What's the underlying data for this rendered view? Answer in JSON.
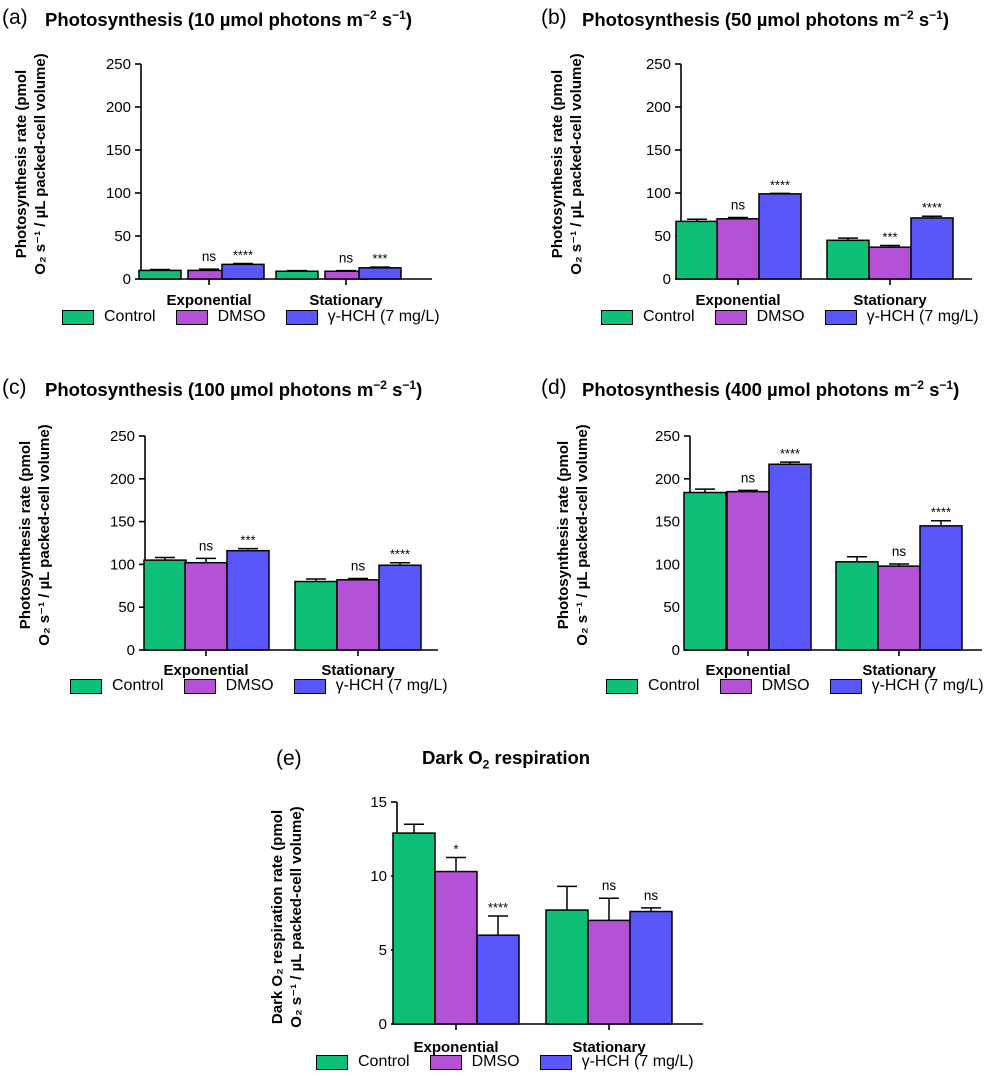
{
  "colors": {
    "control": "#0dbf77",
    "dmso": "#b551d6",
    "hch": "#5a57fa"
  },
  "legend": [
    "Control",
    "DMSO",
    "γ-HCH (7 mg/L)"
  ],
  "chart_data": [
    {
      "id": "a",
      "type": "bar",
      "panel_label": "(a)",
      "title_pre": "Photosynthesis (10 µmol photons m",
      "title_sup1": "−2",
      "title_mid": " s",
      "title_sup2": "−1",
      "title_post": ")",
      "ylabel_line1": "Photosynthesis rate (pmol",
      "ylabel_line2": "O₂ s⁻¹ / µL packed-cell volume)",
      "categories": [
        "Exponential",
        "Stationary"
      ],
      "ylim": [
        0,
        250
      ],
      "yticks": [
        "0",
        "50",
        "100",
        "150",
        "200",
        "250"
      ],
      "series": [
        {
          "name": "Control",
          "values": [
            10,
            9
          ],
          "errors": [
            1,
            0.7
          ],
          "sig": [
            "",
            ""
          ]
        },
        {
          "name": "DMSO",
          "values": [
            10,
            9
          ],
          "errors": [
            1.5,
            0.7
          ],
          "sig": [
            "ns",
            "ns"
          ]
        },
        {
          "name": "γ-HCH (7 mg/L)",
          "values": [
            17,
            13
          ],
          "errors": [
            1,
            0.8
          ],
          "sig": [
            "****",
            "***"
          ]
        }
      ]
    },
    {
      "id": "b",
      "type": "bar",
      "panel_label": "(b)",
      "title_pre": "Photosynthesis (50 µmol photons m",
      "title_sup1": "−2",
      "title_mid": " s",
      "title_sup2": "−1",
      "title_post": ")",
      "ylabel_line1": "Photosynthesis rate (pmol",
      "ylabel_line2": "O₂ s⁻¹ / µL packed-cell volume)",
      "categories": [
        "Exponential",
        "Stationary"
      ],
      "ylim": [
        0,
        250
      ],
      "yticks": [
        "0",
        "50",
        "100",
        "150",
        "200",
        "250"
      ],
      "series": [
        {
          "name": "Control",
          "values": [
            67,
            45
          ],
          "errors": [
            2.5,
            2.5
          ],
          "sig": [
            "",
            ""
          ]
        },
        {
          "name": "DMSO",
          "values": [
            70,
            37
          ],
          "errors": [
            1.5,
            2
          ],
          "sig": [
            "ns",
            "***"
          ]
        },
        {
          "name": "γ-HCH (7 mg/L)",
          "values": [
            99,
            71
          ],
          "errors": [
            0.5,
            2
          ],
          "sig": [
            "****",
            "****"
          ]
        }
      ]
    },
    {
      "id": "c",
      "type": "bar",
      "panel_label": "(c)",
      "title_pre": "Photosynthesis (100 µmol photons m",
      "title_sup1": "−2",
      "title_mid": " s",
      "title_sup2": "−1",
      "title_post": ")",
      "ylabel_line1": "Photosynthesis rate (pmol",
      "ylabel_line2": "O₂ s⁻¹ / µL packed-cell volume)",
      "categories": [
        "Exponential",
        "Stationary"
      ],
      "ylim": [
        0,
        250
      ],
      "yticks": [
        "0",
        "50",
        "100",
        "150",
        "200",
        "250"
      ],
      "series": [
        {
          "name": "Control",
          "values": [
            105,
            80
          ],
          "errors": [
            3,
            3
          ],
          "sig": [
            "",
            ""
          ]
        },
        {
          "name": "DMSO",
          "values": [
            102,
            82
          ],
          "errors": [
            5,
            1.5
          ],
          "sig": [
            "ns",
            "ns"
          ]
        },
        {
          "name": "γ-HCH (7 mg/L)",
          "values": [
            116,
            99
          ],
          "errors": [
            2.5,
            3
          ],
          "sig": [
            "***",
            "****"
          ]
        }
      ]
    },
    {
      "id": "d",
      "type": "bar",
      "panel_label": "(d)",
      "title_pre": "Photosynthesis (400 µmol photons m",
      "title_sup1": "−2",
      "title_mid": " s",
      "title_sup2": "−1",
      "title_post": ")",
      "ylabel_line1": "Photosynthesis rate (pmol",
      "ylabel_line2": "O₂ s⁻¹ / µL packed-cell volume)",
      "categories": [
        "Exponential",
        "Stationary"
      ],
      "ylim": [
        0,
        250
      ],
      "yticks": [
        "0",
        "50",
        "100",
        "150",
        "200",
        "250"
      ],
      "series": [
        {
          "name": "Control",
          "values": [
            184,
            103
          ],
          "errors": [
            4,
            6
          ],
          "sig": [
            "",
            ""
          ]
        },
        {
          "name": "DMSO",
          "values": [
            185,
            98
          ],
          "errors": [
            1.5,
            2.5
          ],
          "sig": [
            "ns",
            "ns"
          ]
        },
        {
          "name": "γ-HCH (7 mg/L)",
          "values": [
            217,
            145
          ],
          "errors": [
            2.5,
            6
          ],
          "sig": [
            "****",
            "****"
          ]
        }
      ]
    },
    {
      "id": "e",
      "type": "bar",
      "panel_label": "(e)",
      "title_pre": "Dark O",
      "title_sub": "2",
      "title_post": " respiration",
      "ylabel_line1": "Dark O₂ respiration rate (pmol",
      "ylabel_line2": "O₂ s⁻¹ / µL packed-cell volume)",
      "categories": [
        "Exponential",
        "Stationary"
      ],
      "ylim": [
        0,
        15
      ],
      "yticks": [
        "0",
        "5",
        "10",
        "15"
      ],
      "series": [
        {
          "name": "Control",
          "values": [
            12.9,
            7.7
          ],
          "errors": [
            0.6,
            1.6
          ],
          "sig": [
            "",
            ""
          ]
        },
        {
          "name": "DMSO",
          "values": [
            10.3,
            7.0
          ],
          "errors": [
            0.95,
            1.5
          ],
          "sig": [
            "*",
            "ns"
          ]
        },
        {
          "name": "γ-HCH (7 mg/L)",
          "values": [
            6.0,
            7.6
          ],
          "errors": [
            1.3,
            0.25
          ],
          "sig": [
            "****",
            "ns"
          ]
        }
      ]
    }
  ]
}
